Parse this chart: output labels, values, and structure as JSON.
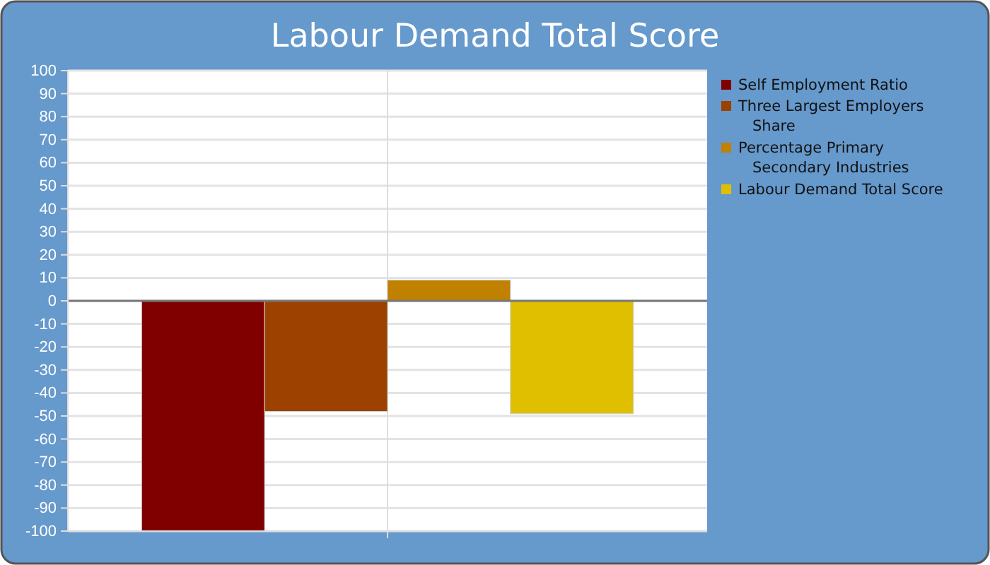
{
  "chart_data": {
    "type": "bar",
    "title": "Labour Demand Total Score",
    "categories": [
      null
    ],
    "series": [
      {
        "name": "Self Employment Ratio",
        "color": "#800000",
        "values": [
          -100
        ]
      },
      {
        "name": "Three Largest Employers Share",
        "color": "#9c4100",
        "values": [
          -48
        ]
      },
      {
        "name": "Percentage Primary Secondary Industries",
        "color": "#c08000",
        "values": [
          9
        ]
      },
      {
        "name": "Labour Demand Total Score",
        "color": "#dfbf00",
        "values": [
          -49
        ]
      }
    ],
    "ylim": [
      -100,
      100
    ],
    "yticks": [
      -100,
      -90,
      -80,
      -70,
      -60,
      -50,
      -40,
      -30,
      -20,
      -10,
      0,
      10,
      20,
      30,
      40,
      50,
      60,
      70,
      80,
      90,
      100
    ],
    "grid": true,
    "legend": "right"
  }
}
